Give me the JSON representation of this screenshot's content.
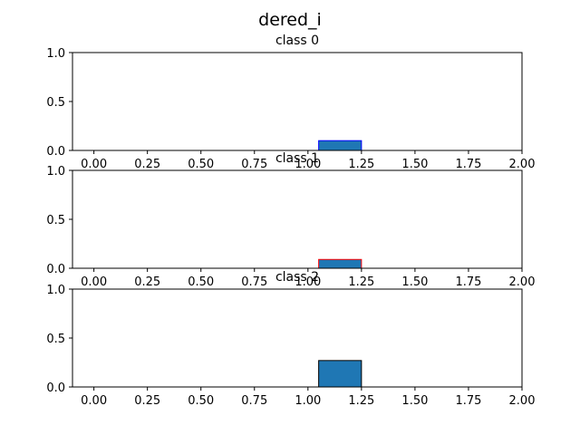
{
  "figure": {
    "title": "dered_i"
  },
  "chart_data": [
    {
      "type": "bar",
      "title": "class 0",
      "xlim": [
        -0.1,
        2.0
      ],
      "ylim": [
        0,
        1.0
      ],
      "xticks": [
        "0.00",
        "0.25",
        "0.50",
        "0.75",
        "1.00",
        "1.25",
        "1.50",
        "1.75",
        "2.00"
      ],
      "yticks": [
        "0.0",
        "0.5",
        "1.0"
      ],
      "bars": [
        {
          "x0": 1.05,
          "x1": 1.25,
          "value": 0.1
        }
      ],
      "baseline": [
        -0.1,
        1.9
      ],
      "fill": "#1f77b4",
      "edge": "#0000ff",
      "grid": false
    },
    {
      "type": "bar",
      "title": "class 1",
      "xlim": [
        -0.1,
        2.0
      ],
      "ylim": [
        0,
        1.0
      ],
      "xticks": [
        "0.00",
        "0.25",
        "0.50",
        "0.75",
        "1.00",
        "1.25",
        "1.50",
        "1.75",
        "2.00"
      ],
      "yticks": [
        "0.0",
        "0.5",
        "1.0"
      ],
      "bars": [
        {
          "x0": 1.05,
          "x1": 1.25,
          "value": 0.09
        }
      ],
      "baseline": [
        -0.1,
        1.9
      ],
      "fill": "#1f77b4",
      "edge": "#ff0000",
      "grid": false
    },
    {
      "type": "bar",
      "title": "class 2",
      "xlim": [
        -0.1,
        2.0
      ],
      "ylim": [
        0,
        1.0
      ],
      "xticks": [
        "0.00",
        "0.25",
        "0.50",
        "0.75",
        "1.00",
        "1.25",
        "1.50",
        "1.75",
        "2.00"
      ],
      "yticks": [
        "0.0",
        "0.5",
        "1.0"
      ],
      "bars": [
        {
          "x0": 1.05,
          "x1": 1.25,
          "value": 0.27
        }
      ],
      "baseline": [
        -0.1,
        1.9
      ],
      "fill": "#1f77b4",
      "edge": "#000000",
      "grid": false
    }
  ]
}
